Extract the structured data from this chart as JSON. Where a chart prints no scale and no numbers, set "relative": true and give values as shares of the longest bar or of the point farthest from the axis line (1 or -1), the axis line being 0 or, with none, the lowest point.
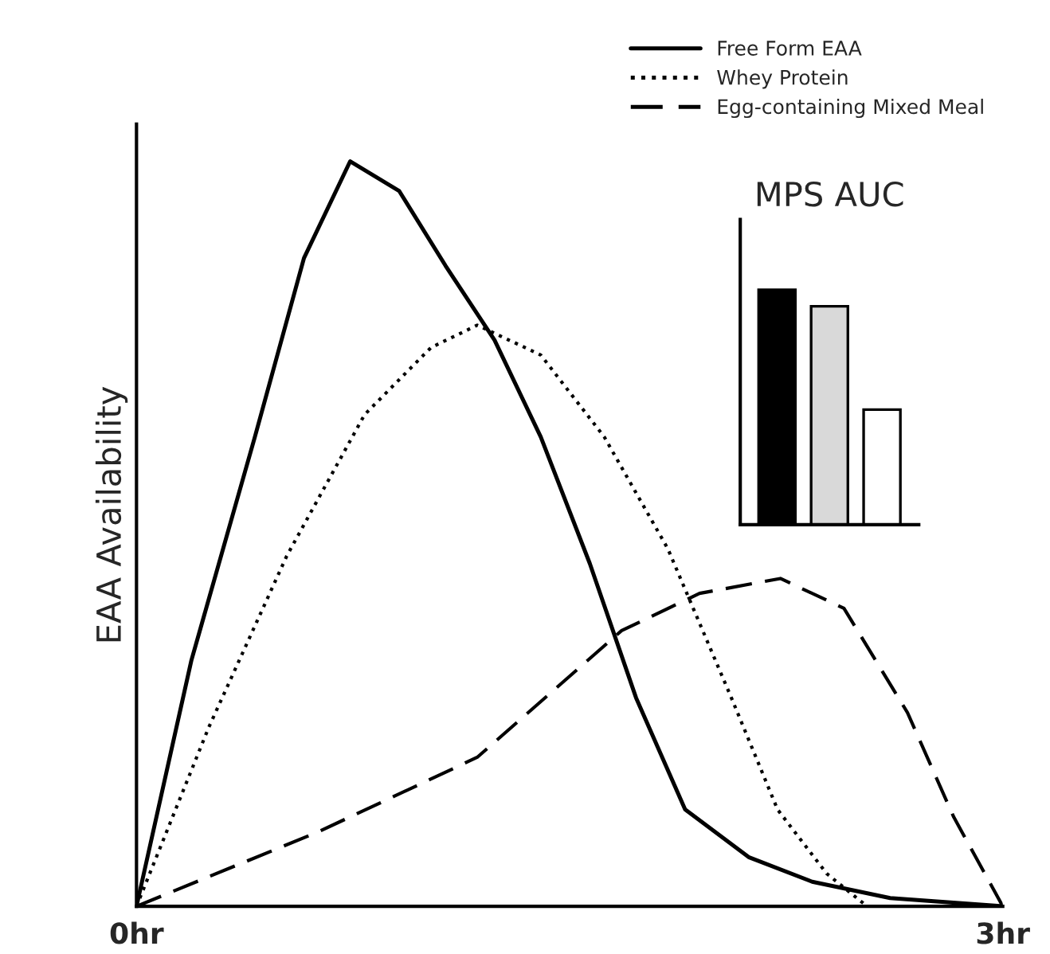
{
  "chart_data": [
    {
      "type": "line",
      "ylabel": "EAA Availability",
      "relative": true,
      "xlim": [
        0,
        3
      ],
      "xticks": [
        {
          "value": 0,
          "label": "0hr"
        },
        {
          "value": 3,
          "label": "3hr"
        }
      ],
      "grid": false,
      "legend": "top right",
      "marker": "none",
      "series": [
        {
          "name": "Free Form EAA",
          "color": "#000000",
          "line_style": "solid",
          "x": [
            0,
            0.19,
            0.41,
            0.58,
            0.74,
            0.91,
            1.07,
            1.24,
            1.4,
            1.57,
            1.73,
            1.9,
            2.12,
            2.34,
            2.61,
            3
          ],
          "values": [
            0,
            0.33,
            0.63,
            0.87,
            1.0,
            0.96,
            0.86,
            0.76,
            0.63,
            0.46,
            0.28,
            0.13,
            0.066,
            0.033,
            0.011,
            0
          ]
        },
        {
          "name": "Whey Protein",
          "color": "#000000",
          "line_style": "dotted",
          "x": [
            0,
            0.25,
            0.52,
            0.79,
            1.02,
            1.18,
            1.4,
            1.62,
            1.84,
            2.06,
            2.22,
            2.39,
            2.53
          ],
          "values": [
            0,
            0.24,
            0.47,
            0.66,
            0.75,
            0.78,
            0.74,
            0.63,
            0.48,
            0.28,
            0.13,
            0.044,
            0
          ]
        },
        {
          "name": "Egg-containing Mixed Meal",
          "color": "#000000",
          "line_style": "dashed",
          "x": [
            0,
            0.63,
            1.18,
            1.68,
            1.95,
            2.23,
            2.45,
            2.67,
            2.83,
            3
          ],
          "values": [
            0,
            0.1,
            0.2,
            0.37,
            0.42,
            0.44,
            0.4,
            0.26,
            0.12,
            0
          ]
        }
      ]
    },
    {
      "type": "bar",
      "title": "MPS AUC",
      "relative": true,
      "categories": [
        null,
        null,
        null
      ],
      "values": [
        1,
        0.93,
        0.49
      ],
      "colors": [
        "#000000",
        "#d9d9d9",
        "#ffffff"
      ]
    }
  ]
}
